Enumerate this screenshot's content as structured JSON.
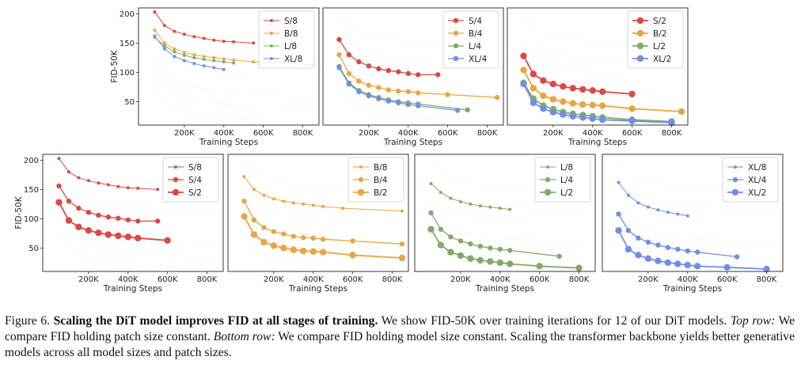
{
  "figure": {
    "ylabel": "FID-50K",
    "xlabel": "Training Steps",
    "colors": {
      "S": "#d94a43",
      "B": "#e8a545",
      "L": "#82aa69",
      "XL": "#6f8fe6"
    },
    "shared_x": [
      50000,
      100000,
      150000,
      200000,
      250000,
      300000,
      350000,
      400000
    ],
    "series": [
      {
        "name": "S/8",
        "x": [
          50000,
          100000,
          150000,
          200000,
          250000,
          300000,
          350000,
          400000,
          450000,
          550000
        ],
        "y": [
          203,
          180,
          170,
          165,
          161,
          158,
          155,
          153,
          152,
          150
        ]
      },
      {
        "name": "S/4",
        "x": [
          50000,
          100000,
          150000,
          200000,
          250000,
          300000,
          350000,
          400000,
          450000,
          550000
        ],
        "y": [
          156,
          130,
          118,
          111,
          106,
          103,
          101,
          98,
          96,
          96
        ]
      },
      {
        "name": "S/2",
        "x": [
          50000,
          100000,
          150000,
          200000,
          250000,
          300000,
          350000,
          400000,
          450000,
          600000
        ],
        "y": [
          128,
          97,
          86,
          80,
          76,
          73,
          71,
          69,
          67,
          63
        ]
      },
      {
        "name": "B/8",
        "x": [
          50000,
          100000,
          150000,
          200000,
          250000,
          300000,
          350000,
          400000,
          450000,
          550000,
          850000
        ],
        "y": [
          172,
          150,
          140,
          134,
          130,
          127,
          125,
          123,
          121,
          118,
          113
        ]
      },
      {
        "name": "B/4",
        "x": [
          50000,
          100000,
          150000,
          200000,
          250000,
          300000,
          350000,
          400000,
          450000,
          600000,
          850000
        ],
        "y": [
          130,
          98,
          85,
          78,
          74,
          70,
          68,
          67,
          65,
          62,
          57
        ]
      },
      {
        "name": "B/2",
        "x": [
          50000,
          100000,
          150000,
          200000,
          250000,
          300000,
          350000,
          400000,
          450000,
          600000,
          850000
        ],
        "y": [
          104,
          73,
          60,
          54,
          50,
          47,
          45,
          44,
          43,
          38,
          33
        ]
      },
      {
        "name": "L/8",
        "x": [
          50000,
          100000,
          150000,
          200000,
          250000,
          300000,
          350000,
          400000,
          450000
        ],
        "y": [
          160,
          145,
          135,
          129,
          125,
          122,
          120,
          118,
          116
        ]
      },
      {
        "name": "L/4",
        "x": [
          50000,
          100000,
          150000,
          200000,
          250000,
          300000,
          350000,
          400000,
          450000,
          700000
        ],
        "y": [
          110,
          82,
          69,
          62,
          57,
          53,
          50,
          48,
          46,
          36
        ]
      },
      {
        "name": "L/2",
        "x": [
          50000,
          100000,
          150000,
          200000,
          250000,
          300000,
          350000,
          400000,
          450000,
          600000,
          800000
        ],
        "y": [
          82,
          55,
          43,
          37,
          32,
          29,
          27,
          25,
          23,
          19,
          16
        ]
      },
      {
        "name": "XL/8",
        "x": [
          50000,
          100000,
          150000,
          200000,
          250000,
          300000,
          350000,
          400000
        ],
        "y": [
          162,
          140,
          127,
          120,
          115,
          111,
          108,
          105
        ]
      },
      {
        "name": "XL/4",
        "x": [
          50000,
          100000,
          150000,
          200000,
          250000,
          300000,
          350000,
          400000,
          450000,
          650000
        ],
        "y": [
          108,
          80,
          67,
          60,
          55,
          51,
          48,
          45,
          43,
          35
        ]
      },
      {
        "name": "XL/2",
        "x": [
          50000,
          100000,
          150000,
          200000,
          250000,
          300000,
          350000,
          400000,
          450000,
          600000,
          800000
        ],
        "y": [
          80,
          48,
          38,
          32,
          28,
          25,
          23,
          21,
          19,
          17,
          14
        ]
      }
    ]
  },
  "chart_data": [
    {
      "type": "line",
      "row": "top",
      "legend": [
        "S/8",
        "B/8",
        "L/8",
        "XL/8"
      ],
      "legend_position": "top-right",
      "xlim": [
        0,
        850000
      ],
      "ylim": [
        10,
        210
      ],
      "xticks": [
        "200K",
        "400K",
        "600K",
        "800K"
      ],
      "yticks": [
        "50",
        "100",
        "150",
        "200"
      ],
      "xlabel": "Training Steps",
      "ylabel": "FID-50K"
    },
    {
      "type": "line",
      "row": "top",
      "legend": [
        "S/4",
        "B/4",
        "L/4",
        "XL/4"
      ],
      "legend_position": "top-right",
      "xlim": [
        0,
        850000
      ],
      "ylim": [
        10,
        210
      ],
      "xticks": [
        "200K",
        "400K",
        "600K",
        "800K"
      ],
      "xlabel": "Training Steps"
    },
    {
      "type": "line",
      "row": "top",
      "legend": [
        "S/2",
        "B/2",
        "L/2",
        "XL/2"
      ],
      "legend_position": "top-right",
      "xlim": [
        0,
        850000
      ],
      "ylim": [
        10,
        210
      ],
      "xticks": [
        "200K",
        "400K",
        "600K",
        "800K"
      ],
      "xlabel": "Training Steps"
    },
    {
      "type": "line",
      "row": "bottom",
      "legend": [
        "S/8",
        "S/4",
        "S/2"
      ],
      "legend_position": "top-right",
      "xlim": [
        0,
        850000
      ],
      "ylim": [
        10,
        210
      ],
      "xticks": [
        "200K",
        "400K",
        "600K",
        "800K"
      ],
      "yticks": [
        "50",
        "100",
        "150",
        "200"
      ],
      "xlabel": "Training Steps",
      "ylabel": "FID-50K"
    },
    {
      "type": "line",
      "row": "bottom",
      "legend": [
        "B/8",
        "B/4",
        "B/2"
      ],
      "legend_position": "top-right",
      "xlim": [
        0,
        850000
      ],
      "ylim": [
        10,
        210
      ],
      "xticks": [
        "200K",
        "400K",
        "600K",
        "800K"
      ],
      "xlabel": "Training Steps"
    },
    {
      "type": "line",
      "row": "bottom",
      "legend": [
        "L/8",
        "L/4",
        "L/2"
      ],
      "legend_position": "top-right",
      "xlim": [
        0,
        850000
      ],
      "ylim": [
        10,
        210
      ],
      "xticks": [
        "200K",
        "400K",
        "600K",
        "800K"
      ],
      "xlabel": "Training Steps"
    },
    {
      "type": "line",
      "row": "bottom",
      "legend": [
        "XL/8",
        "XL/4",
        "XL/2"
      ],
      "legend_position": "top-right",
      "xlim": [
        0,
        850000
      ],
      "ylim": [
        10,
        210
      ],
      "xticks": [
        "200K",
        "400K",
        "600K",
        "800K"
      ],
      "xlabel": "Training Steps"
    }
  ],
  "caption": {
    "prefix": "Figure 6. ",
    "bold": "Scaling the DiT model improves FID at all stages of training.",
    "text1": " We show FID-50K over training iterations for 12 of our DiT models. ",
    "top_label": "Top row:",
    "text2": " We compare FID holding patch size constant. ",
    "bottom_label": "Bottom row:",
    "text3": " We compare FID holding model size constant. Scaling the transformer backbone yields better generative models across all model sizes and patch sizes."
  }
}
